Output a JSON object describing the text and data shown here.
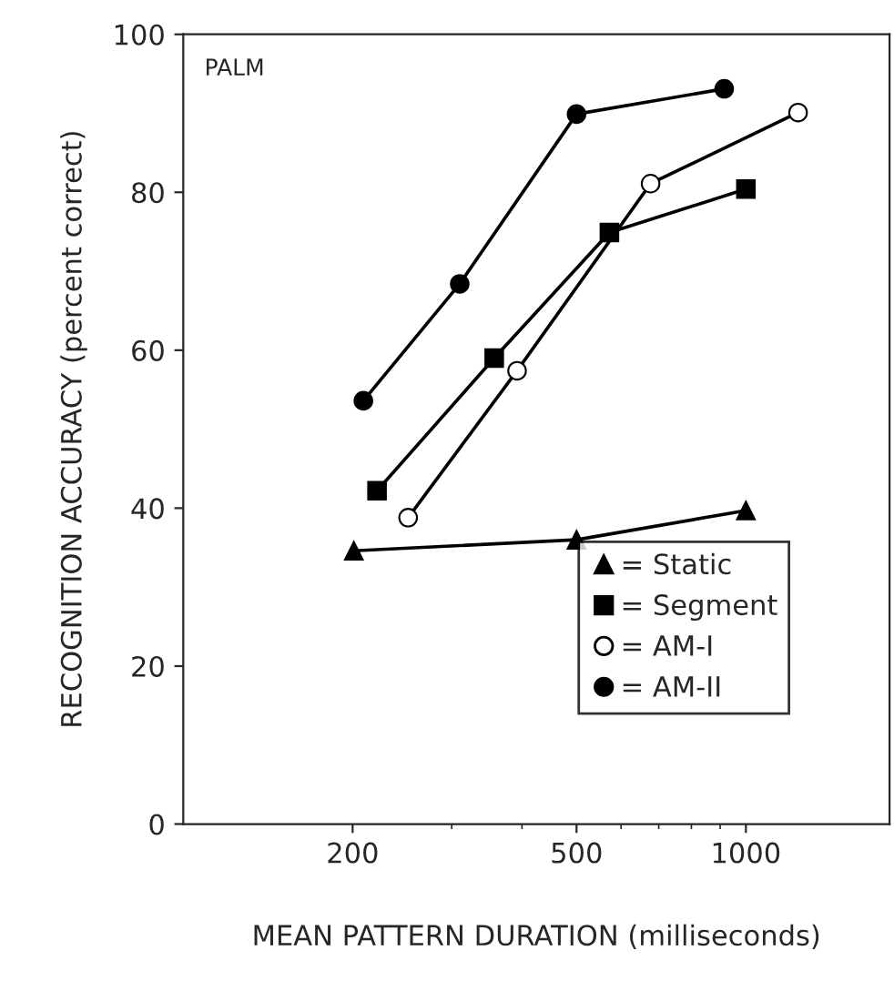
{
  "chart_data": {
    "type": "line",
    "xlabel": "MEAN PATTERN DURATION (milliseconds)",
    "ylabel": "RECOGNITION ACCURACY (percent correct)",
    "annotations": [
      "PALM"
    ],
    "log": "x",
    "xlim": [
      100,
      1800
    ],
    "xticks": [
      200,
      500,
      1000
    ],
    "ylim": [
      0,
      100
    ],
    "yticks": [
      0,
      20,
      40,
      60,
      80,
      100
    ],
    "grid": false,
    "legend": "bottom right",
    "series": [
      {
        "name": "= Static",
        "color": "#000000",
        "marker": "triangle",
        "x": [
          201,
          500,
          1000
        ],
        "values": [
          34.6,
          36.0,
          39.7
        ]
      },
      {
        "name": "= Segment",
        "color": "#000000",
        "marker": "square",
        "x": [
          221,
          357,
          572,
          1000
        ],
        "values": [
          42.2,
          59.0,
          74.9,
          80.4
        ]
      },
      {
        "name": "= AM-I",
        "color": "#000000",
        "marker": "circle",
        "x": [
          251,
          392,
          677,
          1238
        ],
        "values": [
          38.8,
          57.4,
          81.1,
          90.1
        ]
      },
      {
        "name": "= AM-II",
        "color": "#000000",
        "marker": "circle",
        "x": [
          209,
          310,
          500,
          915
        ],
        "values": [
          53.6,
          68.4,
          89.9,
          93.1
        ]
      }
    ]
  }
}
